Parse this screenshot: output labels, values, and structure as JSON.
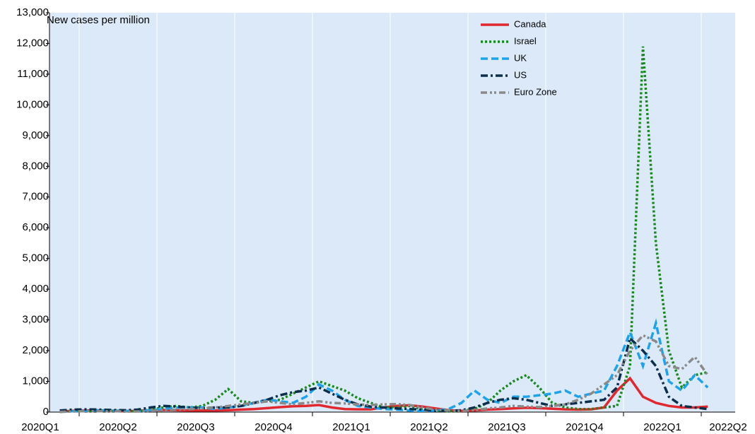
{
  "chart_data": {
    "type": "line",
    "y_label": "New cases per million",
    "categories": [
      "2020Q1",
      null,
      "2020Q2",
      null,
      null,
      null,
      null,
      null,
      "2020Q3",
      null,
      null,
      null,
      null,
      null,
      "2020Q4",
      null,
      null,
      null,
      null,
      null,
      "2021Q1",
      null,
      null,
      null,
      null,
      null,
      "2021Q2",
      null,
      null,
      null,
      null,
      null,
      "2021Q3",
      null,
      null,
      null,
      null,
      null,
      "2021Q4",
      null,
      null,
      null,
      null,
      null,
      "2022Q1",
      null,
      null,
      null,
      null,
      null,
      "2022Q2"
    ],
    "series": [
      {
        "name": "Canada",
        "color": "#e0282e",
        "dash": "solid",
        "values": [
          20,
          40,
          50,
          50,
          40,
          30,
          40,
          60,
          70,
          60,
          50,
          50,
          50,
          60,
          80,
          100,
          130,
          160,
          190,
          200,
          230,
          150,
          100,
          90,
          90,
          150,
          200,
          220,
          180,
          120,
          60,
          40,
          50,
          80,
          100,
          120,
          140,
          130,
          110,
          90,
          80,
          90,
          150,
          700,
          1100,
          500,
          300,
          200,
          150,
          150,
          180
        ]
      },
      {
        "name": "Israel",
        "color": "#178a1e",
        "dash": "dotted",
        "values": [
          10,
          30,
          40,
          50,
          40,
          20,
          30,
          80,
          150,
          200,
          150,
          200,
          400,
          750,
          350,
          300,
          350,
          400,
          600,
          800,
          1000,
          850,
          700,
          450,
          300,
          150,
          150,
          200,
          100,
          50,
          30,
          40,
          100,
          300,
          700,
          1000,
          1200,
          800,
          300,
          150,
          100,
          100,
          150,
          200,
          1500,
          11900,
          5500,
          2000,
          800,
          1200,
          1300
        ]
      },
      {
        "name": "UK",
        "color": "#1ca3ec",
        "dash": "dashed",
        "values": [
          10,
          30,
          40,
          60,
          50,
          40,
          30,
          60,
          100,
          150,
          150,
          150,
          100,
          150,
          200,
          300,
          400,
          350,
          300,
          500,
          900,
          700,
          400,
          200,
          150,
          100,
          80,
          50,
          40,
          50,
          100,
          300,
          700,
          400,
          300,
          500,
          500,
          550,
          600,
          700,
          500,
          600,
          700,
          1500,
          2600,
          1500,
          2900,
          1000,
          700,
          1200,
          800
        ]
      },
      {
        "name": "US",
        "color": "#0b2f4a",
        "dash": "dashdot",
        "values": [
          50,
          80,
          90,
          80,
          70,
          60,
          80,
          150,
          200,
          180,
          150,
          130,
          150,
          150,
          200,
          300,
          400,
          550,
          650,
          700,
          800,
          600,
          400,
          250,
          180,
          150,
          120,
          100,
          80,
          50,
          40,
          60,
          150,
          300,
          400,
          450,
          400,
          300,
          200,
          250,
          300,
          350,
          400,
          800,
          2400,
          2000,
          1500,
          500,
          200,
          150,
          100
        ]
      },
      {
        "name": "Euro Zone",
        "color": "#8a8a8a",
        "dash": "dashdotdot",
        "values": [
          10,
          20,
          30,
          30,
          30,
          20,
          20,
          40,
          60,
          80,
          100,
          120,
          150,
          200,
          250,
          300,
          350,
          300,
          250,
          300,
          350,
          300,
          280,
          250,
          230,
          250,
          260,
          230,
          150,
          80,
          50,
          40,
          60,
          120,
          150,
          200,
          180,
          160,
          200,
          250,
          400,
          600,
          900,
          1200,
          2000,
          2500,
          2300,
          1500,
          1400,
          1800,
          1200
        ]
      }
    ],
    "ylim": [
      0,
      13000
    ],
    "yticks": [
      0,
      {
        "value": 1000,
        "label": "1,000"
      },
      {
        "value": 2000,
        "label": "2,000"
      },
      {
        "value": 3000,
        "label": "3,000"
      },
      {
        "value": 4000,
        "label": "4,000"
      },
      {
        "value": 5000,
        "label": "5,000"
      },
      {
        "value": 6000,
        "label": "6,000"
      },
      {
        "value": 7000,
        "label": "7,000"
      },
      {
        "value": 8000,
        "label": "8,000"
      },
      {
        "value": 9000,
        "label": "9,000"
      },
      {
        "value": 10000,
        "label": "10,000"
      },
      {
        "value": 11000,
        "label": "11,000"
      },
      {
        "value": 12000,
        "label": "12,000"
      },
      {
        "value": 13000,
        "label": "13,000"
      }
    ],
    "legend": "top-right"
  }
}
